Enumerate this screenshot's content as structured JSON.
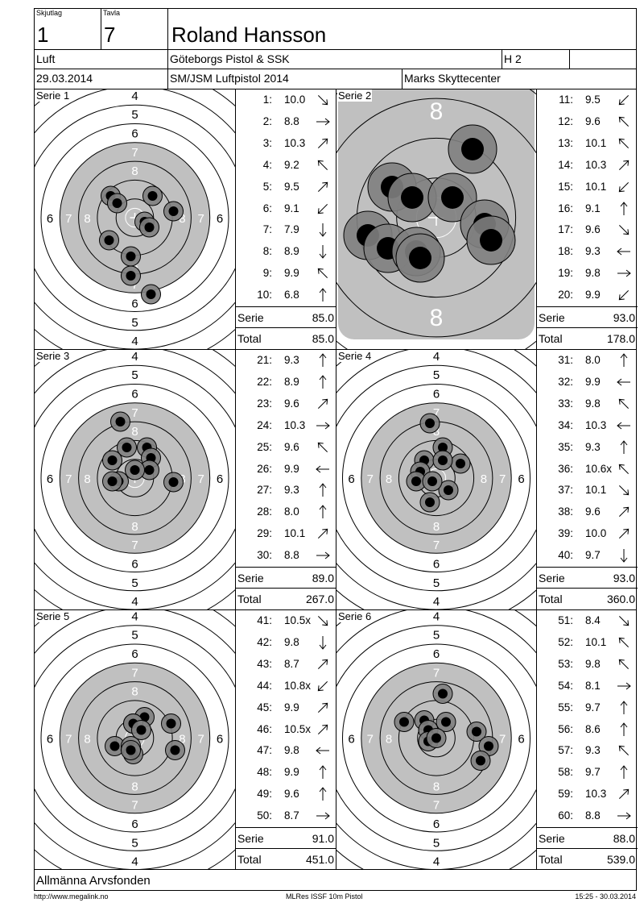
{
  "header": {
    "skjutlag_label": "Skjutlag",
    "skjutlag": "1",
    "tavla_label": "Tavla",
    "tavla": "7",
    "name": "Roland Hansson",
    "class": "Luft",
    "club": "Göteborgs Pistol & SSK",
    "group": "H 2",
    "date": "29.03.2014",
    "competition": "SM/JSM Luftpistol 2014",
    "venue": "Marks Skyttecenter"
  },
  "series": [
    {
      "label": "Serie 1",
      "serie_label": "Serie",
      "serie": "85.0",
      "total_label": "Total",
      "total": "85.0",
      "shots": [
        {
          "n": "1:",
          "v": "10.0",
          "dir": "se"
        },
        {
          "n": "2:",
          "v": "8.8",
          "dir": "e"
        },
        {
          "n": "3:",
          "v": "10.3",
          "dir": "ne"
        },
        {
          "n": "4:",
          "v": "9.2",
          "dir": "nw"
        },
        {
          "n": "5:",
          "v": "9.5",
          "dir": "ne"
        },
        {
          "n": "6:",
          "v": "9.1",
          "dir": "sw"
        },
        {
          "n": "7:",
          "v": "7.9",
          "dir": "s"
        },
        {
          "n": "8:",
          "v": "8.9",
          "dir": "s"
        },
        {
          "n": "9:",
          "v": "9.9",
          "dir": "nw"
        },
        {
          "n": "10:",
          "v": "6.8",
          "dir": "n"
        }
      ]
    },
    {
      "label": "Serie 2",
      "serie_label": "Serie",
      "serie": "93.0",
      "total_label": "Total",
      "total": "178.0",
      "shots": [
        {
          "n": "11:",
          "v": "9.5",
          "dir": "sw"
        },
        {
          "n": "12:",
          "v": "9.6",
          "dir": "nw"
        },
        {
          "n": "13:",
          "v": "10.1",
          "dir": "nw"
        },
        {
          "n": "14:",
          "v": "10.3",
          "dir": "ne"
        },
        {
          "n": "15:",
          "v": "10.1",
          "dir": "sw"
        },
        {
          "n": "16:",
          "v": "9.1",
          "dir": "n"
        },
        {
          "n": "17:",
          "v": "9.6",
          "dir": "se"
        },
        {
          "n": "18:",
          "v": "9.3",
          "dir": "w"
        },
        {
          "n": "19:",
          "v": "9.8",
          "dir": "e"
        },
        {
          "n": "20:",
          "v": "9.9",
          "dir": "sw"
        }
      ]
    },
    {
      "label": "Serie 3",
      "serie_label": "Serie",
      "serie": "89.0",
      "total_label": "Total",
      "total": "267.0",
      "shots": [
        {
          "n": "21:",
          "v": "9.3",
          "dir": "n"
        },
        {
          "n": "22:",
          "v": "8.9",
          "dir": "n"
        },
        {
          "n": "23:",
          "v": "9.6",
          "dir": "ne"
        },
        {
          "n": "24:",
          "v": "10.3",
          "dir": "e"
        },
        {
          "n": "25:",
          "v": "9.6",
          "dir": "nw"
        },
        {
          "n": "26:",
          "v": "9.9",
          "dir": "w"
        },
        {
          "n": "27:",
          "v": "9.3",
          "dir": "n"
        },
        {
          "n": "28:",
          "v": "8.0",
          "dir": "n"
        },
        {
          "n": "29:",
          "v": "10.1",
          "dir": "ne"
        },
        {
          "n": "30:",
          "v": "8.8",
          "dir": "e"
        }
      ]
    },
    {
      "label": "Serie 4",
      "serie_label": "Serie",
      "serie": "93.0",
      "total_label": "Total",
      "total": "360.0",
      "shots": [
        {
          "n": "31:",
          "v": "8.0",
          "dir": "n"
        },
        {
          "n": "32:",
          "v": "9.9",
          "dir": "w"
        },
        {
          "n": "33:",
          "v": "9.8",
          "dir": "nw"
        },
        {
          "n": "34:",
          "v": "10.3",
          "dir": "w"
        },
        {
          "n": "35:",
          "v": "9.3",
          "dir": "n"
        },
        {
          "n": "36:",
          "v": "10.6x",
          "dir": "nw"
        },
        {
          "n": "37:",
          "v": "10.1",
          "dir": "se"
        },
        {
          "n": "38:",
          "v": "9.6",
          "dir": "ne"
        },
        {
          "n": "39:",
          "v": "10.0",
          "dir": "ne"
        },
        {
          "n": "40:",
          "v": "9.7",
          "dir": "s"
        }
      ]
    },
    {
      "label": "Serie 5",
      "serie_label": "Serie",
      "serie": "91.0",
      "total_label": "Total",
      "total": "451.0",
      "shots": [
        {
          "n": "41:",
          "v": "10.5x",
          "dir": "se"
        },
        {
          "n": "42:",
          "v": "9.8",
          "dir": "s"
        },
        {
          "n": "43:",
          "v": "8.7",
          "dir": "ne"
        },
        {
          "n": "44:",
          "v": "10.8x",
          "dir": "sw"
        },
        {
          "n": "45:",
          "v": "9.9",
          "dir": "ne"
        },
        {
          "n": "46:",
          "v": "10.5x",
          "dir": "ne"
        },
        {
          "n": "47:",
          "v": "9.8",
          "dir": "w"
        },
        {
          "n": "48:",
          "v": "9.9",
          "dir": "n"
        },
        {
          "n": "49:",
          "v": "9.6",
          "dir": "n"
        },
        {
          "n": "50:",
          "v": "8.7",
          "dir": "e"
        }
      ]
    },
    {
      "label": "Serie 6",
      "serie_label": "Serie",
      "serie": "88.0",
      "total_label": "Total",
      "total": "539.0",
      "shots": [
        {
          "n": "51:",
          "v": "8.4",
          "dir": "se"
        },
        {
          "n": "52:",
          "v": "10.1",
          "dir": "nw"
        },
        {
          "n": "53:",
          "v": "9.8",
          "dir": "nw"
        },
        {
          "n": "54:",
          "v": "8.1",
          "dir": "e"
        },
        {
          "n": "55:",
          "v": "9.7",
          "dir": "n"
        },
        {
          "n": "56:",
          "v": "8.6",
          "dir": "n"
        },
        {
          "n": "57:",
          "v": "9.3",
          "dir": "nw"
        },
        {
          "n": "58:",
          "v": "9.7",
          "dir": "n"
        },
        {
          "n": "59:",
          "v": "10.3",
          "dir": "ne"
        },
        {
          "n": "60:",
          "v": "8.8",
          "dir": "e"
        }
      ]
    }
  ],
  "sponsor": "Allmänna Arvsfonden",
  "footer": {
    "url": "http://www.megalink.no",
    "system": "MLRes ISSF 10m Pistol",
    "timestamp": "15:25 - 30.03.2014"
  },
  "colors": {
    "ring_gray": "#c0c0c0",
    "hole_outer": "#808080",
    "hole_inner": "#000000"
  }
}
